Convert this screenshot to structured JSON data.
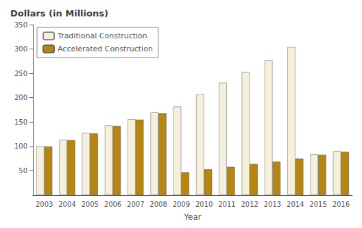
{
  "chart_data": {
    "type": "bar",
    "title": "Dollars (in Millions)",
    "xlabel": "Year",
    "categories": [
      "2003",
      "2004",
      "2005",
      "2006",
      "2007",
      "2008",
      "2009",
      "2010",
      "2011",
      "2012",
      "2013",
      "2014",
      "2015",
      "2016"
    ],
    "series": [
      {
        "name": "Traditional Construction",
        "color": "#F5F0DC",
        "values": [
          101,
          114,
          128,
          143,
          156,
          170,
          182,
          207,
          231,
          253,
          277,
          304,
          84,
          90
        ]
      },
      {
        "name": "Accelerated Construction",
        "color": "#B8860B",
        "values": [
          100,
          113,
          127,
          142,
          155,
          168,
          47,
          53,
          58,
          64,
          69,
          75,
          83,
          89
        ]
      }
    ],
    "ylim": [
      0,
      350
    ],
    "yticks": [
      50,
      100,
      150,
      200,
      250,
      300,
      350
    ],
    "grid": false,
    "legend": "upper left"
  }
}
